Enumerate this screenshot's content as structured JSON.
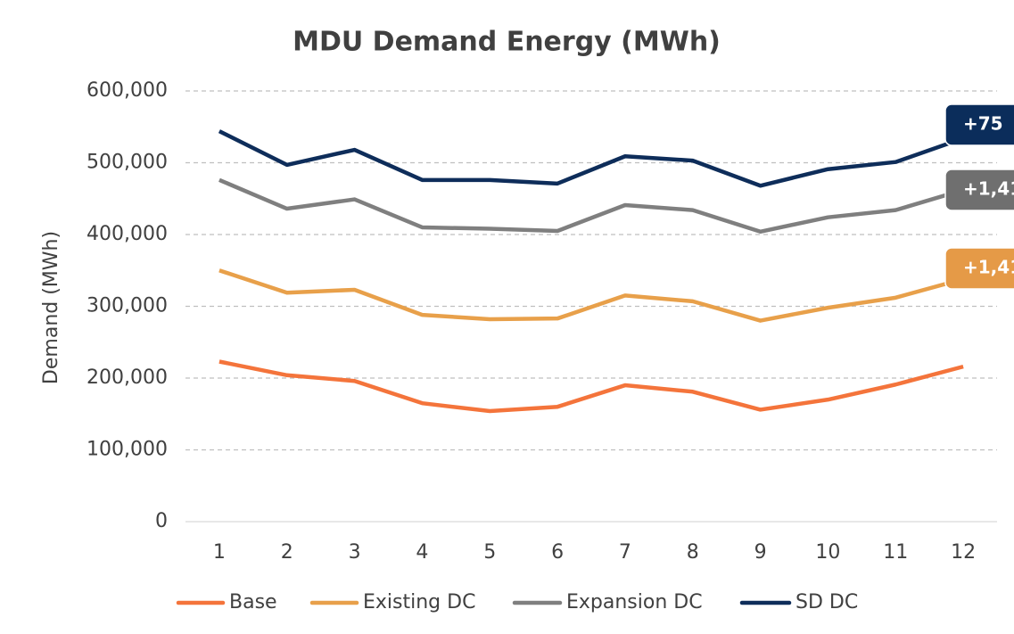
{
  "chart_data": {
    "type": "line",
    "title": "MDU Demand Energy (MWh)",
    "y_label": "Demand (MWh)",
    "categories": [
      "1",
      "2",
      "3",
      "4",
      "5",
      "6",
      "7",
      "8",
      "9",
      "10",
      "11",
      "12"
    ],
    "series": [
      {
        "name": "Base",
        "color": "#f4743b",
        "values": [
          223000,
          204000,
          196000,
          165000,
          154000,
          160000,
          190000,
          181000,
          156000,
          170000,
          191000,
          216000
        ]
      },
      {
        "name": "Existing DC",
        "color": "#e8a04a",
        "values": [
          350000,
          319000,
          323000,
          288000,
          282000,
          283000,
          315000,
          307000,
          280000,
          298000,
          312000,
          338000
        ]
      },
      {
        "name": "Expansion DC",
        "color": "#7f7f7f",
        "values": [
          476000,
          436000,
          449000,
          410000,
          408000,
          405000,
          441000,
          434000,
          404000,
          424000,
          434000,
          462000
        ]
      },
      {
        "name": "SD DC",
        "color": "#0e2d5a",
        "values": [
          544000,
          497000,
          518000,
          476000,
          476000,
          471000,
          509000,
          503000,
          468000,
          491000,
          501000,
          534000
        ]
      }
    ],
    "annotations": [
      {
        "text": "+75",
        "color": "#0b2d5b"
      },
      {
        "text": "+1,41",
        "color": "#6f6f6f"
      },
      {
        "text": "+1,41",
        "color": "#e59a47"
      }
    ],
    "ylim": [
      0,
      600000
    ],
    "yticks": [
      0,
      {
        "value": 100000,
        "label": "100,000"
      },
      {
        "value": 200000,
        "label": "200,000"
      },
      {
        "value": 300000,
        "label": "300,000"
      },
      {
        "value": 400000,
        "label": "400,000"
      },
      {
        "value": 500000,
        "label": "500,000"
      },
      {
        "value": 600000,
        "label": "600,000"
      }
    ],
    "grid": true,
    "legend": "bottom"
  }
}
